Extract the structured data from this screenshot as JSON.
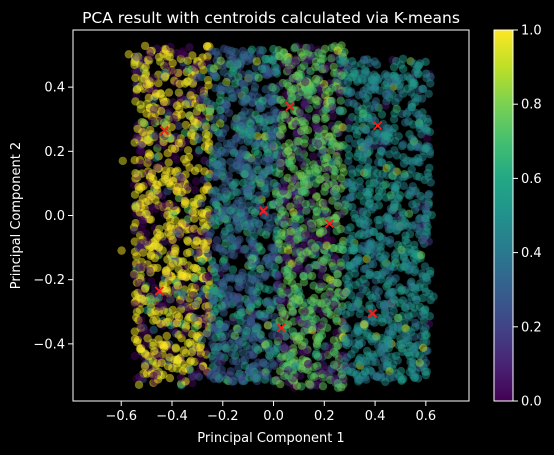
{
  "chart_data": {
    "type": "scatter",
    "title": "PCA result with centroids calculated via K-means",
    "xlabel": "Principal Component 1",
    "ylabel": "Principal Component 2",
    "xlim": [
      -0.79,
      0.77
    ],
    "ylim": [
      -0.578,
      0.578
    ],
    "xticks": [
      -0.6,
      -0.4,
      -0.2,
      0.0,
      0.2,
      0.4,
      0.6
    ],
    "xtick_labels": [
      "−0.6",
      "−0.4",
      "−0.2",
      "0.0",
      "0.2",
      "0.4",
      "0.6"
    ],
    "yticks": [
      -0.4,
      -0.2,
      0.0,
      0.2,
      0.4
    ],
    "ytick_labels": [
      "−0.4",
      "−0.2",
      "0.0",
      "0.2",
      "0.4"
    ],
    "colormap": "viridis",
    "colorbar": {
      "range": [
        0.0,
        1.0
      ],
      "ticks": [
        0.0,
        0.2,
        0.4,
        0.6,
        0.8,
        1.0
      ],
      "tick_labels": [
        "0.0",
        "0.2",
        "0.4",
        "0.6",
        "0.8",
        "1.0"
      ]
    },
    "point_clusters": [
      {
        "x_range": [
          -0.55,
          -0.25
        ],
        "y_range": [
          -0.53,
          0.53
        ],
        "dominant_value": 1.0,
        "secondary_value": 0.0
      },
      {
        "x_range": [
          -0.25,
          0.02
        ],
        "y_range": [
          -0.52,
          0.52
        ],
        "dominant_value": 0.3,
        "secondary_value": 0.6
      },
      {
        "x_range": [
          0.02,
          0.28
        ],
        "y_range": [
          -0.54,
          0.53
        ],
        "dominant_value": 0.75,
        "secondary_value": 0.05
      },
      {
        "x_range": [
          0.28,
          0.62
        ],
        "y_range": [
          -0.52,
          0.49
        ],
        "dominant_value": 0.5,
        "secondary_value": 0.4
      }
    ],
    "centroids": [
      {
        "x": -0.43,
        "y": 0.265
      },
      {
        "x": -0.45,
        "y": -0.235
      },
      {
        "x": 0.065,
        "y": 0.34
      },
      {
        "x": -0.04,
        "y": 0.015
      },
      {
        "x": 0.03,
        "y": -0.35
      },
      {
        "x": 0.22,
        "y": -0.025
      },
      {
        "x": 0.41,
        "y": 0.28
      },
      {
        "x": 0.39,
        "y": -0.305
      }
    ],
    "centroid_color": "#ff1a1a",
    "grid": false,
    "legend": "none"
  }
}
